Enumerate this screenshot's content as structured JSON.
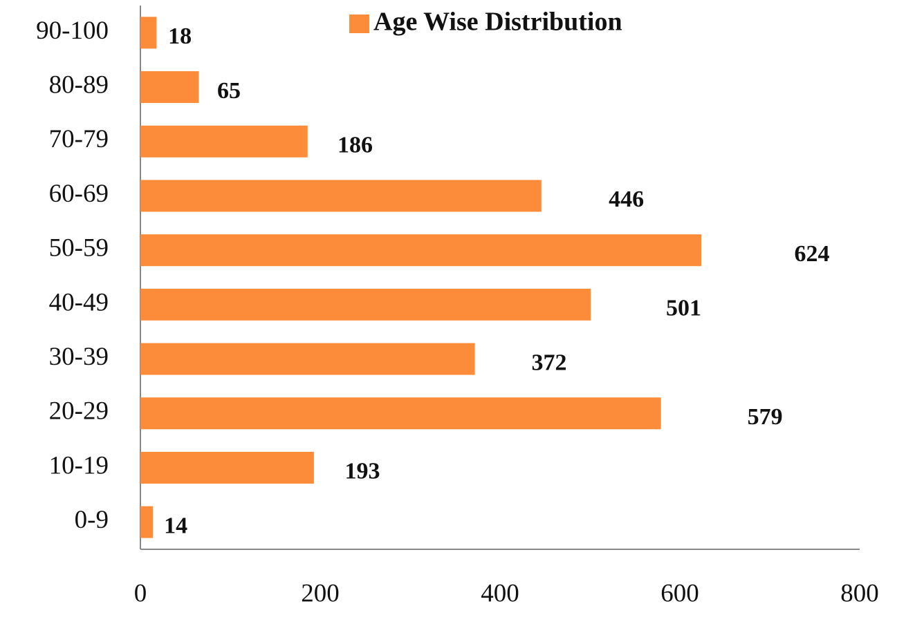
{
  "chart_data": {
    "type": "bar",
    "orientation": "horizontal",
    "legend": "Age Wise Distribution",
    "legend_position": "top",
    "categories": [
      "0-9",
      "10-19",
      "20-29",
      "30-39",
      "40-49",
      "50-59",
      "60-69",
      "70-79",
      "80-89",
      "90-100"
    ],
    "values": [
      14,
      193,
      579,
      372,
      501,
      624,
      446,
      186,
      65,
      18
    ],
    "color": "#fd8c3a",
    "xlim": [
      0,
      800
    ],
    "xticks": [
      0,
      200,
      400,
      600,
      800
    ],
    "grid": false
  }
}
